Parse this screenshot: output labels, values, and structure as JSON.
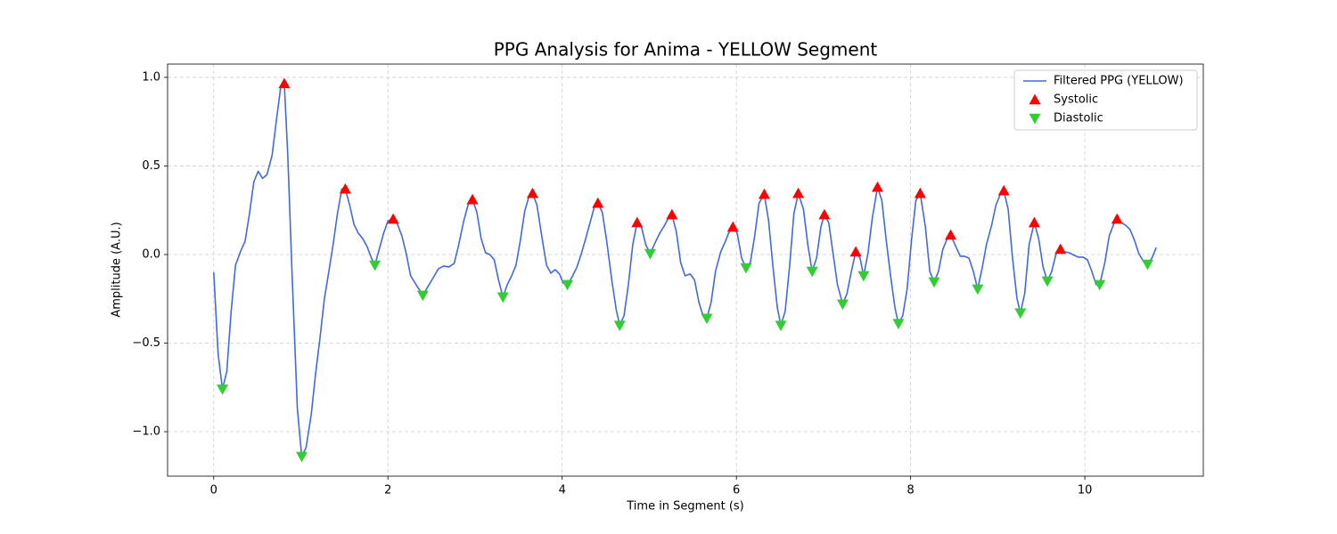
{
  "chart_data": {
    "type": "line",
    "title": "PPG Analysis for Anima - YELLOW Segment",
    "x_label": "Time in Segment (s)",
    "y_label": "Amplitude (A.U.)",
    "xlim": [
      -0.53,
      11.36
    ],
    "ylim": [
      -1.251,
      1.075
    ],
    "xticks": [
      0,
      2,
      4,
      6,
      8,
      10
    ],
    "yticks": [
      {
        "value": -1.0,
        "label": "−1.0"
      },
      {
        "value": -0.5,
        "label": "−0.5"
      },
      {
        "value": 0.0,
        "label": "0.0"
      },
      {
        "value": 0.5,
        "label": "0.5"
      },
      {
        "value": 1.0,
        "label": "1.0"
      }
    ],
    "grid": true,
    "legend": "upper right",
    "series": [
      {
        "name": "Filtered PPG (YELLOW)",
        "color": "#4169e1",
        "marker": "none",
        "x": [
          0,
          0.05,
          0.1,
          0.15,
          0.2,
          0.25,
          0.31,
          0.36,
          0.41,
          0.46,
          0.51,
          0.56,
          0.61,
          0.67,
          0.72,
          0.77,
          0.81,
          0.85,
          0.9,
          0.96,
          1.01,
          1.06,
          1.12,
          1.17,
          1.22,
          1.27,
          1.32,
          1.37,
          1.42,
          1.47,
          1.51,
          1.56,
          1.61,
          1.66,
          1.71,
          1.76,
          1.81,
          1.85,
          1.9,
          1.95,
          2.0,
          2.06,
          2.11,
          2.16,
          2.21,
          2.26,
          2.31,
          2.4,
          2.46,
          2.52,
          2.58,
          2.64,
          2.7,
          2.76,
          2.81,
          2.87,
          2.92,
          2.97,
          3.02,
          3.07,
          3.12,
          3.17,
          3.22,
          3.27,
          3.32,
          3.37,
          3.42,
          3.47,
          3.52,
          3.57,
          3.62,
          3.66,
          3.71,
          3.77,
          3.82,
          3.87,
          3.92,
          3.97,
          4.01,
          4.06,
          4.11,
          4.17,
          4.22,
          4.27,
          4.32,
          4.37,
          4.41,
          4.46,
          4.51,
          4.57,
          4.62,
          4.66,
          4.71,
          4.76,
          4.81,
          4.86,
          4.91,
          4.96,
          5.01,
          5.07,
          5.12,
          5.17,
          5.22,
          5.26,
          5.31,
          5.36,
          5.41,
          5.47,
          5.52,
          5.57,
          5.62,
          5.66,
          5.71,
          5.76,
          5.82,
          5.87,
          5.91,
          5.96,
          6.01,
          6.06,
          6.11,
          6.16,
          6.21,
          6.26,
          6.32,
          6.37,
          6.42,
          6.47,
          6.51,
          6.56,
          6.61,
          6.66,
          6.71,
          6.77,
          6.82,
          6.87,
          6.92,
          6.97,
          7.01,
          7.06,
          7.11,
          7.16,
          7.22,
          7.27,
          7.32,
          7.37,
          7.42,
          7.46,
          7.51,
          7.56,
          7.62,
          7.67,
          7.72,
          7.77,
          7.82,
          7.86,
          7.91,
          7.96,
          8.01,
          8.06,
          8.11,
          8.17,
          8.22,
          8.27,
          8.32,
          8.37,
          8.42,
          8.46,
          8.51,
          8.57,
          8.62,
          8.67,
          8.72,
          8.77,
          8.82,
          8.87,
          8.93,
          8.98,
          9.03,
          9.07,
          9.12,
          9.17,
          9.22,
          9.26,
          9.31,
          9.36,
          9.42,
          9.47,
          9.52,
          9.57,
          9.62,
          9.67,
          9.72,
          9.77,
          9.82,
          9.88,
          9.93,
          9.98,
          10.03,
          10.08,
          10.13,
          10.17,
          10.23,
          10.28,
          10.33,
          10.37,
          10.42,
          10.47,
          10.52,
          10.57,
          10.62,
          10.68,
          10.72,
          10.77,
          10.82
        ],
        "values": [
          -0.1,
          -0.56,
          -0.76,
          -0.66,
          -0.32,
          -0.06,
          0.02,
          0.075,
          0.23,
          0.41,
          0.47,
          0.43,
          0.45,
          0.56,
          0.76,
          0.95,
          0.965,
          0.56,
          -0.12,
          -0.87,
          -1.14,
          -1.09,
          -0.9,
          -0.67,
          -0.47,
          -0.25,
          -0.1,
          0.055,
          0.23,
          0.37,
          0.37,
          0.28,
          0.17,
          0.12,
          0.09,
          0.045,
          -0.02,
          -0.06,
          0.03,
          0.12,
          0.19,
          0.2,
          0.17,
          0.105,
          0.005,
          -0.12,
          -0.16,
          -0.23,
          -0.18,
          -0.13,
          -0.08,
          -0.065,
          -0.07,
          -0.05,
          0.05,
          0.19,
          0.28,
          0.31,
          0.24,
          0.09,
          0.01,
          0.0,
          -0.03,
          -0.145,
          -0.24,
          -0.17,
          -0.12,
          -0.06,
          0.08,
          0.245,
          0.33,
          0.345,
          0.28,
          0.09,
          -0.06,
          -0.105,
          -0.085,
          -0.11,
          -0.16,
          -0.17,
          -0.13,
          -0.07,
          0.005,
          0.09,
          0.18,
          0.27,
          0.29,
          0.24,
          0.08,
          -0.145,
          -0.31,
          -0.4,
          -0.345,
          -0.17,
          0.055,
          0.18,
          0.155,
          0.055,
          0.005,
          0.07,
          0.12,
          0.16,
          0.205,
          0.225,
          0.13,
          -0.045,
          -0.12,
          -0.11,
          -0.145,
          -0.27,
          -0.35,
          -0.36,
          -0.27,
          -0.095,
          0.015,
          0.07,
          0.12,
          0.155,
          0.12,
          -0.02,
          -0.075,
          -0.045,
          0.105,
          0.29,
          0.34,
          0.19,
          -0.07,
          -0.3,
          -0.4,
          -0.32,
          -0.07,
          0.23,
          0.345,
          0.255,
          0.055,
          -0.095,
          -0.02,
          0.155,
          0.225,
          0.18,
          0.005,
          -0.17,
          -0.28,
          -0.22,
          -0.095,
          0.015,
          -0.02,
          -0.12,
          0.005,
          0.205,
          0.38,
          0.305,
          0.08,
          -0.12,
          -0.3,
          -0.39,
          -0.345,
          -0.195,
          0.08,
          0.305,
          0.345,
          0.155,
          -0.095,
          -0.155,
          -0.095,
          0.03,
          0.09,
          0.11,
          0.055,
          -0.01,
          -0.01,
          -0.02,
          -0.095,
          -0.195,
          -0.08,
          0.055,
          0.165,
          0.28,
          0.34,
          0.36,
          0.255,
          -0.02,
          -0.245,
          -0.33,
          -0.22,
          0.055,
          0.18,
          0.09,
          -0.07,
          -0.15,
          -0.095,
          0.005,
          0.03,
          0.015,
          0.01,
          -0.005,
          -0.015,
          -0.015,
          -0.03,
          -0.095,
          -0.17,
          -0.17,
          -0.045,
          0.105,
          0.17,
          0.2,
          0.18,
          0.165,
          0.14,
          0.08,
          0.005,
          -0.045,
          -0.055,
          -0.02,
          0.04
        ]
      },
      {
        "name": "Systolic",
        "color": "#ff0000",
        "marker": "triangle-up",
        "x": [
          0.81,
          1.51,
          2.06,
          2.97,
          3.66,
          4.41,
          4.86,
          5.26,
          5.96,
          6.32,
          6.71,
          7.01,
          7.37,
          7.62,
          8.11,
          8.46,
          9.07,
          9.42,
          9.72,
          10.37
        ],
        "values": [
          0.965,
          0.37,
          0.2,
          0.31,
          0.345,
          0.29,
          0.18,
          0.225,
          0.155,
          0.34,
          0.345,
          0.225,
          0.015,
          0.38,
          0.345,
          0.11,
          0.36,
          0.18,
          0.03,
          0.2
        ]
      },
      {
        "name": "Diastolic",
        "color": "#32cd32",
        "marker": "triangle-down",
        "x": [
          0.1,
          1.01,
          1.85,
          2.4,
          3.32,
          4.06,
          4.66,
          5.01,
          5.66,
          6.11,
          6.51,
          6.87,
          7.22,
          7.46,
          7.86,
          8.27,
          8.77,
          9.26,
          9.57,
          10.17,
          10.72
        ],
        "values": [
          -0.76,
          -1.14,
          -0.06,
          -0.23,
          -0.24,
          -0.17,
          -0.4,
          0.005,
          -0.36,
          -0.075,
          -0.4,
          -0.095,
          -0.28,
          -0.12,
          -0.39,
          -0.155,
          -0.195,
          -0.33,
          -0.15,
          -0.17,
          -0.055
        ]
      }
    ]
  }
}
